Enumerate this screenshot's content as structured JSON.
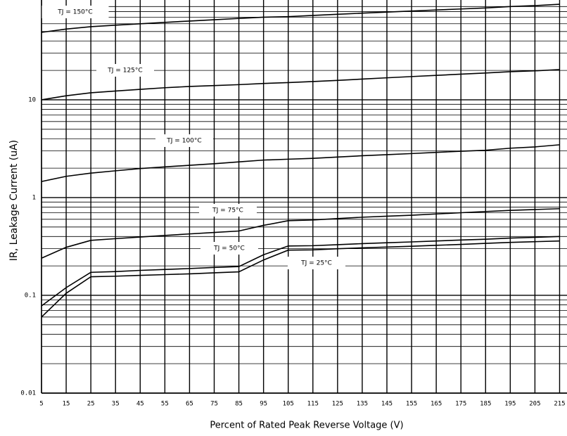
{
  "chart_data": {
    "type": "line",
    "y_label": "IR, Leakage Current (uA)",
    "x_label": "Percent of Rated Peak Reverse Voltage (V)",
    "log_y": true,
    "grid": true,
    "minor_grid": true,
    "xlim": [
      5,
      218
    ],
    "ylim": [
      0.01,
      105
    ],
    "xticks": [
      5,
      15,
      25,
      35,
      45,
      55,
      65,
      75,
      85,
      95,
      105,
      115,
      125,
      135,
      145,
      155,
      165,
      175,
      185,
      195,
      205,
      215
    ],
    "yticks": [
      0.01,
      0.1,
      1,
      10
    ],
    "x": [
      5,
      15,
      25,
      35,
      45,
      55,
      65,
      75,
      85,
      95,
      105,
      115,
      125,
      135,
      145,
      155,
      165,
      175,
      185,
      195,
      205,
      215
    ],
    "series": [
      {
        "name": "TJ = 150°C",
        "color": "#000000",
        "values": [
          49,
          53,
          56,
          58,
          60,
          62,
          64,
          66,
          68,
          70,
          71,
          73,
          75,
          77,
          79,
          81,
          83,
          85,
          87,
          90,
          92,
          95
        ]
      },
      {
        "name": "TJ = 125°C",
        "color": "#000000",
        "values": [
          10,
          11,
          11.8,
          12.3,
          12.8,
          13.3,
          13.7,
          14.0,
          14.3,
          14.7,
          15.0,
          15.4,
          15.8,
          16.3,
          16.8,
          17.3,
          17.8,
          18.3,
          18.8,
          19.4,
          19.8,
          20.4
        ]
      },
      {
        "name": "TJ = 100°C",
        "color": "#000000",
        "values": [
          1.46,
          1.65,
          1.78,
          1.88,
          1.98,
          2.06,
          2.14,
          2.22,
          2.32,
          2.42,
          2.47,
          2.52,
          2.6,
          2.68,
          2.75,
          2.82,
          2.9,
          2.98,
          3.05,
          3.2,
          3.3,
          3.47
        ]
      },
      {
        "name": "TJ = 75°C",
        "color": "#000000",
        "values": [
          0.24,
          0.31,
          0.365,
          0.38,
          0.395,
          0.41,
          0.425,
          0.44,
          0.455,
          0.52,
          0.58,
          0.59,
          0.61,
          0.63,
          0.645,
          0.66,
          0.68,
          0.7,
          0.72,
          0.74,
          0.755,
          0.77
        ]
      },
      {
        "name": "TJ = 50°C",
        "color": "#000000",
        "values": [
          0.078,
          0.12,
          0.172,
          0.175,
          0.18,
          0.184,
          0.188,
          0.193,
          0.197,
          0.26,
          0.32,
          0.322,
          0.33,
          0.338,
          0.345,
          0.352,
          0.36,
          0.368,
          0.375,
          0.385,
          0.392,
          0.4
        ]
      },
      {
        "name": "TJ = 25°C",
        "color": "#000000",
        "values": [
          0.06,
          0.105,
          0.155,
          0.157,
          0.16,
          0.163,
          0.166,
          0.17,
          0.174,
          0.23,
          0.29,
          0.292,
          0.3,
          0.306,
          0.312,
          0.318,
          0.325,
          0.332,
          0.34,
          0.348,
          0.354,
          0.36
        ]
      }
    ]
  }
}
